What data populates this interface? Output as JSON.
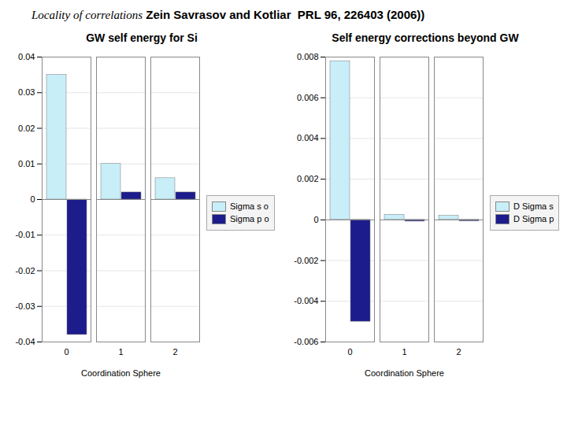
{
  "title": "Locality of correlations",
  "subtitle": "Zein Savrasov and Kotliar  PRL 96, 226403 (2006))",
  "chart_data": [
    {
      "type": "bar",
      "title": "GW self energy for Si",
      "x_label": "Coordination Sphere",
      "categories": [
        "0",
        "1",
        "2"
      ],
      "series": [
        {
          "name": "Sigma s o",
          "color": "#c8eef8",
          "values": [
            0.035,
            0.01,
            0.006
          ]
        },
        {
          "name": "Sigma p o",
          "color": "#1c1c8c",
          "values": [
            -0.038,
            0.002,
            0.002
          ]
        }
      ],
      "ylim": [
        -0.04,
        0.04
      ],
      "yticks": [
        -0.04,
        -0.03,
        -0.02,
        -0.01,
        0,
        0.01,
        0.02,
        0.03,
        0.04
      ],
      "grid": true,
      "legend": "right"
    },
    {
      "type": "bar",
      "title": "Self energy corrections beyond GW",
      "x_label": "Coordination Sphere",
      "categories": [
        "0",
        "1",
        "2"
      ],
      "series": [
        {
          "name": "D Sigma s",
          "color": "#c8eef8",
          "values": [
            0.0078,
            0.00025,
            0.0002
          ]
        },
        {
          "name": "D Sigma p",
          "color": "#1c1c8c",
          "values": [
            -0.005,
            -8e-05,
            -7e-05
          ]
        }
      ],
      "ylim": [
        -0.006,
        0.008
      ],
      "yticks": [
        -0.006,
        -0.004,
        -0.002,
        0,
        0.002,
        0.004,
        0.006,
        0.008
      ],
      "grid": true,
      "legend": "right"
    }
  ]
}
